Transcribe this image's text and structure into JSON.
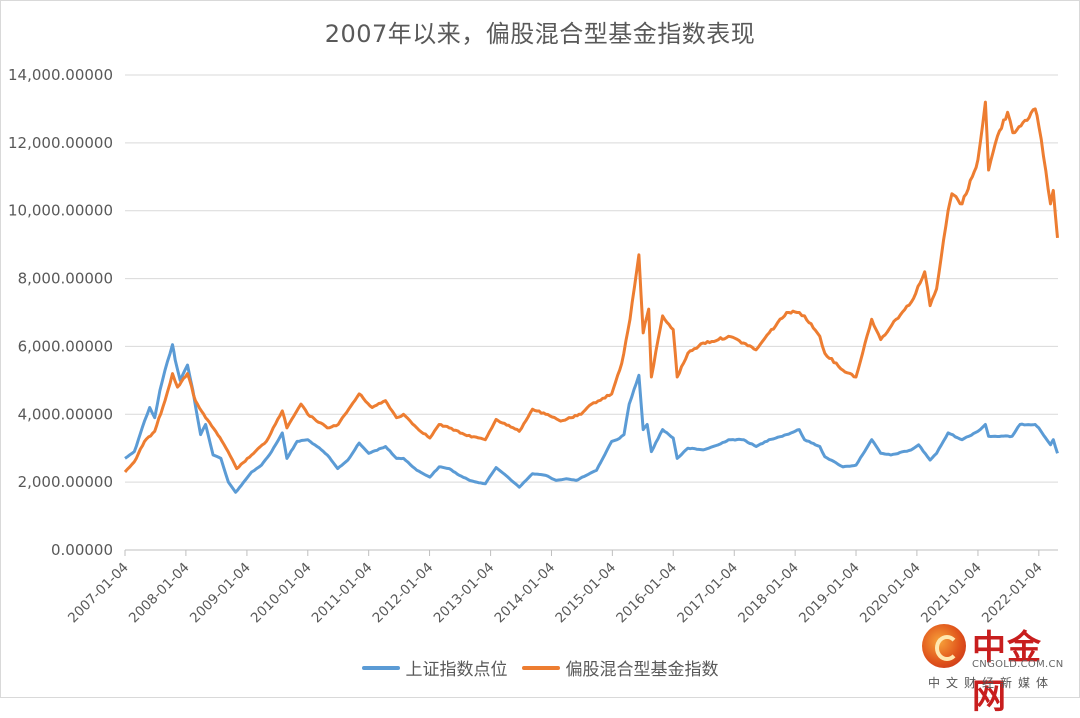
{
  "chart_data": {
    "type": "line",
    "title": "2007年以来，偏股混合型基金指数表现",
    "xlabel": "",
    "ylabel": "",
    "ylim": [
      0,
      14000
    ],
    "yticks": [
      "0.00000",
      "2,000.00000",
      "4,000.00000",
      "6,000.00000",
      "8,000.00000",
      "10,000.00000",
      "12,000.00000",
      "14,000.00000"
    ],
    "ytick_values": [
      0,
      2000,
      4000,
      6000,
      8000,
      10000,
      12000,
      14000
    ],
    "x_start": "2007-01-04",
    "x_end": "2022-04-29",
    "xticks": [
      "2007-01-04",
      "2008-01-04",
      "2009-01-04",
      "2010-01-04",
      "2011-01-04",
      "2012-01-04",
      "2013-01-04",
      "2014-01-04",
      "2015-01-04",
      "2016-01-04",
      "2017-01-04",
      "2018-01-04",
      "2019-01-04",
      "2020-01-04",
      "2021-01-04",
      "2022-01-04"
    ],
    "grid": true,
    "legend_position": "bottom",
    "series": [
      {
        "name": "上证指数点位",
        "color": "#5B9BD5",
        "points": [
          [
            "2007-01-04",
            2700
          ],
          [
            "2007-03-01",
            2900
          ],
          [
            "2007-05-01",
            3800
          ],
          [
            "2007-06-01",
            4200
          ],
          [
            "2007-07-01",
            3900
          ],
          [
            "2007-08-01",
            4700
          ],
          [
            "2007-09-01",
            5300
          ],
          [
            "2007-10-16",
            6050
          ],
          [
            "2007-11-01",
            5600
          ],
          [
            "2007-12-01",
            5000
          ],
          [
            "2008-01-14",
            5450
          ],
          [
            "2008-02-15",
            4700
          ],
          [
            "2008-04-01",
            3400
          ],
          [
            "2008-05-01",
            3700
          ],
          [
            "2008-06-15",
            2800
          ],
          [
            "2008-08-01",
            2700
          ],
          [
            "2008-09-15",
            2000
          ],
          [
            "2008-10-28",
            1700
          ],
          [
            "2008-12-01",
            1900
          ],
          [
            "2009-02-01",
            2300
          ],
          [
            "2009-04-01",
            2500
          ],
          [
            "2009-06-01",
            2900
          ],
          [
            "2009-08-04",
            3450
          ],
          [
            "2009-09-01",
            2700
          ],
          [
            "2009-11-01",
            3200
          ],
          [
            "2010-01-04",
            3250
          ],
          [
            "2010-03-01",
            3050
          ],
          [
            "2010-05-01",
            2800
          ],
          [
            "2010-07-02",
            2400
          ],
          [
            "2010-09-01",
            2650
          ],
          [
            "2010-11-08",
            3150
          ],
          [
            "2011-01-04",
            2850
          ],
          [
            "2011-04-15",
            3050
          ],
          [
            "2011-06-20",
            2700
          ],
          [
            "2011-08-01",
            2700
          ],
          [
            "2011-10-20",
            2350
          ],
          [
            "2012-01-06",
            2150
          ],
          [
            "2012-03-01",
            2450
          ],
          [
            "2012-05-01",
            2400
          ],
          [
            "2012-07-01",
            2200
          ],
          [
            "2012-09-01",
            2050
          ],
          [
            "2012-12-03",
            1950
          ],
          [
            "2013-02-06",
            2430
          ],
          [
            "2013-04-01",
            2220
          ],
          [
            "2013-06-25",
            1850
          ],
          [
            "2013-09-12",
            2250
          ],
          [
            "2013-12-01",
            2200
          ],
          [
            "2014-02-01",
            2050
          ],
          [
            "2014-04-01",
            2100
          ],
          [
            "2014-06-01",
            2050
          ],
          [
            "2014-08-01",
            2200
          ],
          [
            "2014-10-01",
            2350
          ],
          [
            "2014-12-31",
            3200
          ],
          [
            "2015-02-01",
            3250
          ],
          [
            "2015-03-15",
            3400
          ],
          [
            "2015-04-15",
            4300
          ],
          [
            "2015-06-12",
            5150
          ],
          [
            "2015-07-08",
            3550
          ],
          [
            "2015-08-01",
            3700
          ],
          [
            "2015-08-26",
            2900
          ],
          [
            "2015-11-01",
            3550
          ],
          [
            "2016-01-04",
            3300
          ],
          [
            "2016-01-28",
            2700
          ],
          [
            "2016-04-01",
            3000
          ],
          [
            "2016-07-01",
            2950
          ],
          [
            "2016-10-01",
            3100
          ],
          [
            "2016-12-01",
            3250
          ],
          [
            "2017-03-01",
            3250
          ],
          [
            "2017-05-15",
            3050
          ],
          [
            "2017-08-01",
            3250
          ],
          [
            "2017-11-14",
            3400
          ],
          [
            "2018-01-29",
            3550
          ],
          [
            "2018-03-01",
            3250
          ],
          [
            "2018-06-01",
            3050
          ],
          [
            "2018-07-01",
            2750
          ],
          [
            "2018-10-18",
            2450
          ],
          [
            "2019-01-04",
            2500
          ],
          [
            "2019-04-08",
            3250
          ],
          [
            "2019-06-01",
            2850
          ],
          [
            "2019-08-01",
            2800
          ],
          [
            "2019-12-01",
            2950
          ],
          [
            "2020-01-14",
            3100
          ],
          [
            "2020-03-23",
            2650
          ],
          [
            "2020-05-01",
            2850
          ],
          [
            "2020-07-09",
            3450
          ],
          [
            "2020-10-01",
            3250
          ],
          [
            "2021-01-04",
            3500
          ],
          [
            "2021-02-18",
            3700
          ],
          [
            "2021-03-09",
            3350
          ],
          [
            "2021-07-28",
            3350
          ],
          [
            "2021-09-13",
            3700
          ],
          [
            "2021-12-13",
            3700
          ],
          [
            "2022-01-04",
            3600
          ],
          [
            "2022-03-15",
            3100
          ],
          [
            "2022-04-01",
            3250
          ],
          [
            "2022-04-26",
            2850
          ]
        ]
      },
      {
        "name": "偏股混合型基金指数",
        "color": "#ED7D31",
        "points": [
          [
            "2007-01-04",
            2300
          ],
          [
            "2007-03-01",
            2600
          ],
          [
            "2007-05-01",
            3200
          ],
          [
            "2007-07-01",
            3500
          ],
          [
            "2007-09-01",
            4400
          ],
          [
            "2007-10-16",
            5200
          ],
          [
            "2007-11-15",
            4800
          ],
          [
            "2008-01-14",
            5200
          ],
          [
            "2008-03-01",
            4400
          ],
          [
            "2008-05-01",
            3900
          ],
          [
            "2008-07-01",
            3500
          ],
          [
            "2008-09-01",
            3000
          ],
          [
            "2008-11-04",
            2400
          ],
          [
            "2009-02-01",
            2800
          ],
          [
            "2009-05-01",
            3200
          ],
          [
            "2009-08-04",
            4100
          ],
          [
            "2009-09-01",
            3600
          ],
          [
            "2009-11-24",
            4300
          ],
          [
            "2010-01-04",
            4000
          ],
          [
            "2010-05-01",
            3600
          ],
          [
            "2010-07-05",
            3700
          ],
          [
            "2010-11-08",
            4600
          ],
          [
            "2011-01-25",
            4200
          ],
          [
            "2011-04-15",
            4400
          ],
          [
            "2011-06-20",
            3900
          ],
          [
            "2011-08-01",
            4000
          ],
          [
            "2011-10-20",
            3600
          ],
          [
            "2012-01-06",
            3300
          ],
          [
            "2012-03-01",
            3700
          ],
          [
            "2012-05-01",
            3600
          ],
          [
            "2012-08-01",
            3400
          ],
          [
            "2012-12-03",
            3250
          ],
          [
            "2013-02-06",
            3850
          ],
          [
            "2013-06-25",
            3500
          ],
          [
            "2013-09-12",
            4150
          ],
          [
            "2013-12-01",
            4000
          ],
          [
            "2014-03-01",
            3800
          ],
          [
            "2014-05-01",
            3900
          ],
          [
            "2014-07-01",
            4000
          ],
          [
            "2014-09-01",
            4300
          ],
          [
            "2014-12-31",
            4600
          ],
          [
            "2015-03-01",
            5500
          ],
          [
            "2015-04-20",
            6800
          ],
          [
            "2015-06-12",
            8700
          ],
          [
            "2015-07-08",
            6400
          ],
          [
            "2015-08-10",
            7100
          ],
          [
            "2015-08-26",
            5100
          ],
          [
            "2015-11-01",
            6900
          ],
          [
            "2016-01-04",
            6500
          ],
          [
            "2016-01-28",
            5100
          ],
          [
            "2016-04-01",
            5800
          ],
          [
            "2016-07-01",
            6100
          ],
          [
            "2016-10-01",
            6200
          ],
          [
            "2016-12-01",
            6300
          ],
          [
            "2017-03-01",
            6100
          ],
          [
            "2017-05-15",
            5900
          ],
          [
            "2017-08-01",
            6400
          ],
          [
            "2017-11-14",
            7000
          ],
          [
            "2018-01-29",
            7000
          ],
          [
            "2018-03-01",
            6900
          ],
          [
            "2018-06-01",
            6300
          ],
          [
            "2018-07-01",
            5800
          ],
          [
            "2018-10-18",
            5300
          ],
          [
            "2019-01-04",
            5100
          ],
          [
            "2019-04-08",
            6800
          ],
          [
            "2019-06-01",
            6200
          ],
          [
            "2019-09-01",
            6800
          ],
          [
            "2019-12-01",
            7300
          ],
          [
            "2020-02-20",
            8200
          ],
          [
            "2020-03-23",
            7200
          ],
          [
            "2020-05-01",
            7700
          ],
          [
            "2020-07-09",
            10000
          ],
          [
            "2020-08-01",
            10500
          ],
          [
            "2020-10-01",
            10200
          ],
          [
            "2020-12-01",
            11000
          ],
          [
            "2021-01-04",
            11500
          ],
          [
            "2021-02-18",
            13200
          ],
          [
            "2021-03-09",
            11200
          ],
          [
            "2021-05-01",
            12200
          ],
          [
            "2021-07-01",
            12900
          ],
          [
            "2021-08-01",
            12300
          ],
          [
            "2021-10-01",
            12600
          ],
          [
            "2021-12-13",
            13000
          ],
          [
            "2022-01-04",
            12500
          ],
          [
            "2022-02-01",
            11600
          ],
          [
            "2022-03-15",
            10200
          ],
          [
            "2022-04-01",
            10600
          ],
          [
            "2022-04-26",
            9200
          ]
        ]
      }
    ]
  },
  "watermark": {
    "name": "中金网",
    "domain": "CNGOLD.COM.CN",
    "slogan": "中文财经新媒体"
  }
}
